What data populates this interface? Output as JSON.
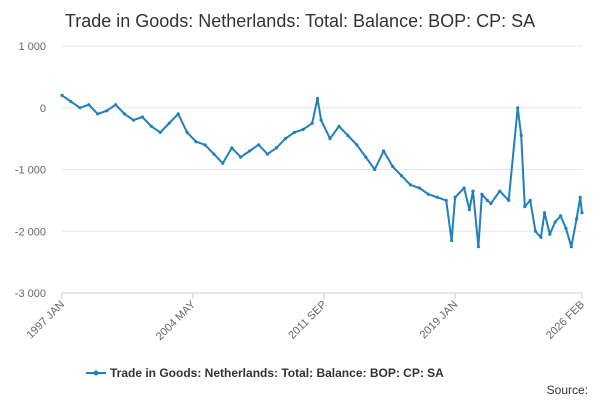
{
  "chart_data": {
    "type": "line",
    "title": "Trade in Goods: Netherlands: Total: Balance: BOP: CP: SA",
    "xlabel": "",
    "ylabel": "",
    "ylim": [
      -3000,
      1000
    ],
    "yticks": [
      1000,
      0,
      -1000,
      -2000,
      -3000
    ],
    "ytick_labels": [
      "1 000",
      "0",
      "-1 000",
      "-2 000",
      "-3 000"
    ],
    "xlim": [
      1997.0,
      2026.1
    ],
    "xticks": [
      {
        "t": 1997.0,
        "label": "1997 JAN"
      },
      {
        "t": 2004.33,
        "label": "2004 MAY"
      },
      {
        "t": 2011.67,
        "label": "2011 SEP"
      },
      {
        "t": 2019.0,
        "label": "2019 JAN"
      },
      {
        "t": 2026.1,
        "label": "2026 FEB"
      }
    ],
    "grid": true,
    "legend_position": "bottom",
    "series": [
      {
        "name": "Trade in Goods: Netherlands: Total: Balance: BOP: CP: SA",
        "color": "#1f7fbf",
        "x": [
          1997.0,
          1997.5,
          1998.0,
          1998.5,
          1999.0,
          1999.5,
          2000.0,
          2000.5,
          2001.0,
          2001.5,
          2002.0,
          2002.5,
          2003.0,
          2003.5,
          2004.0,
          2004.5,
          2005.0,
          2005.5,
          2006.0,
          2006.5,
          2007.0,
          2007.5,
          2008.0,
          2008.5,
          2009.0,
          2009.5,
          2010.0,
          2010.5,
          2011.0,
          2011.3,
          2011.5,
          2012.0,
          2012.5,
          2013.0,
          2013.5,
          2014.0,
          2014.5,
          2015.0,
          2015.5,
          2016.0,
          2016.5,
          2017.0,
          2017.5,
          2018.0,
          2018.5,
          2018.8,
          2019.0,
          2019.5,
          2019.8,
          2020.0,
          2020.3,
          2020.5,
          2020.8,
          2021.0,
          2021.5,
          2022.0,
          2022.5,
          2022.7,
          2022.9,
          2023.2,
          2023.5,
          2023.8,
          2024.0,
          2024.3,
          2024.6,
          2024.9,
          2025.2,
          2025.5,
          2025.8,
          2026.0,
          2026.1
        ],
        "y": [
          200,
          100,
          0,
          50,
          -100,
          -50,
          50,
          -100,
          -200,
          -150,
          -300,
          -400,
          -250,
          -100,
          -400,
          -550,
          -600,
          -750,
          -900,
          -650,
          -800,
          -700,
          -600,
          -750,
          -650,
          -500,
          -400,
          -350,
          -250,
          150,
          -200,
          -500,
          -300,
          -450,
          -600,
          -800,
          -1000,
          -700,
          -950,
          -1100,
          -1250,
          -1300,
          -1400,
          -1450,
          -1500,
          -2150,
          -1450,
          -1300,
          -1650,
          -1350,
          -2250,
          -1400,
          -1500,
          -1550,
          -1350,
          -1500,
          0,
          -450,
          -1600,
          -1500,
          -2000,
          -2100,
          -1700,
          -2050,
          -1850,
          -1750,
          -1950,
          -2250,
          -1800,
          -1450,
          -1700
        ]
      }
    ]
  },
  "legend": {
    "label": "Trade in Goods: Netherlands: Total: Balance: BOP: CP: SA"
  },
  "source": {
    "label": "Source:"
  }
}
